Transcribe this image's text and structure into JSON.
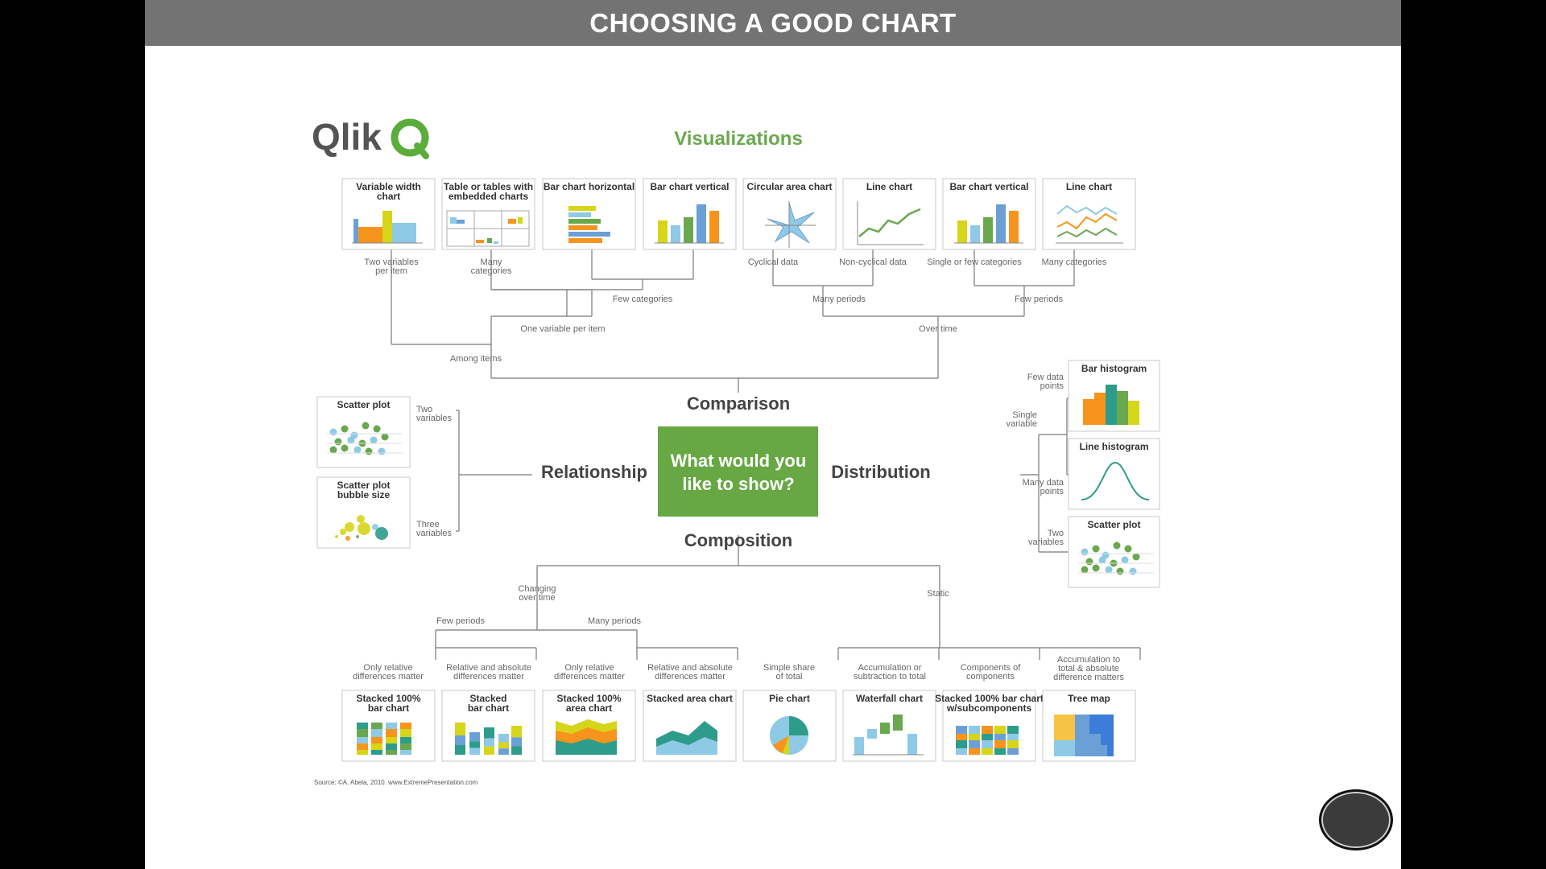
{
  "slide": {
    "title": "CHOOSING A GOOD CHART"
  },
  "logo": {
    "text": "Qlik"
  },
  "diagram": {
    "heading": "Visualizations",
    "center_question": [
      "What would you",
      "like to show?"
    ],
    "categories": {
      "comparison": "Comparison",
      "relationship": "Relationship",
      "distribution": "Distribution",
      "composition": "Composition"
    },
    "comparison": {
      "charts": [
        {
          "title": [
            "Variable width",
            "chart"
          ],
          "icon": "variable-width-chart-icon"
        },
        {
          "title": [
            "Table or tables with",
            "embedded charts"
          ],
          "icon": "table-embedded-charts-icon"
        },
        {
          "title": [
            "Bar chart horizontal"
          ],
          "icon": "bar-chart-horizontal-icon"
        },
        {
          "title": [
            "Bar chart vertical"
          ],
          "icon": "bar-chart-vertical-icon"
        },
        {
          "title": [
            "Circular area chart"
          ],
          "icon": "circular-area-chart-icon"
        },
        {
          "title": [
            "Line chart"
          ],
          "icon": "line-chart-icon"
        },
        {
          "title": [
            "Bar chart vertical"
          ],
          "icon": "bar-chart-vertical-icon"
        },
        {
          "title": [
            "Line chart"
          ],
          "icon": "multi-line-chart-icon"
        }
      ],
      "labels": {
        "two_variables": [
          "Two variables",
          "per item"
        ],
        "many_categories_1": [
          "Many",
          "categories"
        ],
        "cyclical": "Cyclical data",
        "non_cyclical": "Non-cyclical data",
        "single_few": "Single or few categories",
        "many_categories_2": "Many categories",
        "few_categories": "Few categories",
        "many_periods": "Many periods",
        "few_periods": "Few periods",
        "one_variable": "One variable per item",
        "over_time": "Over time",
        "among_items": "Among items"
      }
    },
    "relationship": {
      "charts": [
        {
          "title": [
            "Scatter plot"
          ],
          "icon": "scatter-plot-icon"
        },
        {
          "title": [
            "Scatter plot",
            "bubble size"
          ],
          "icon": "bubble-chart-icon"
        }
      ],
      "labels": {
        "two_variables": [
          "Two",
          "variables"
        ],
        "three_variables": [
          "Three",
          "variables"
        ]
      }
    },
    "distribution": {
      "charts": [
        {
          "title": [
            "Bar histogram"
          ],
          "icon": "bar-histogram-icon"
        },
        {
          "title": [
            "Line histogram"
          ],
          "icon": "line-histogram-icon"
        },
        {
          "title": [
            "Scatter plot"
          ],
          "icon": "scatter-plot-icon"
        }
      ],
      "labels": {
        "few_points": [
          "Few data",
          "points"
        ],
        "single_variable": [
          "Single",
          "variable"
        ],
        "many_points": [
          "Many data",
          "points"
        ],
        "two_variables": [
          "Two",
          "variables"
        ]
      }
    },
    "composition": {
      "charts": [
        {
          "title": [
            "Stacked 100%",
            "bar chart"
          ],
          "icon": "stacked-100-bar-chart-icon"
        },
        {
          "title": [
            "Stacked",
            "bar chart"
          ],
          "icon": "stacked-bar-chart-icon"
        },
        {
          "title": [
            "Stacked 100%",
            "area chart"
          ],
          "icon": "stacked-100-area-chart-icon"
        },
        {
          "title": [
            "Stacked area chart"
          ],
          "icon": "stacked-area-chart-icon"
        },
        {
          "title": [
            "Pie chart"
          ],
          "icon": "pie-chart-icon"
        },
        {
          "title": [
            "Waterfall chart"
          ],
          "icon": "waterfall-chart-icon"
        },
        {
          "title": [
            "Stacked 100% bar chart",
            "w/subcomponents"
          ],
          "icon": "stacked-subcomponents-icon"
        },
        {
          "title": [
            "Tree map"
          ],
          "icon": "tree-map-icon"
        }
      ],
      "labels": {
        "changing": [
          "Changing",
          "over time"
        ],
        "static": "Static",
        "few_periods": "Few periods",
        "many_periods": "Many periods",
        "only_relative_1": [
          "Only relative",
          "differences matter"
        ],
        "relative_absolute_1": [
          "Relative and absolute",
          "differences matter"
        ],
        "only_relative_2": [
          "Only relative",
          "differences matter"
        ],
        "relative_absolute_2": [
          "Relative and absolute",
          "differences matter"
        ],
        "simple_share": [
          "Simple share",
          "of total"
        ],
        "accumulation": [
          "Accumulation or",
          "subtraction to total"
        ],
        "components": [
          "Components of",
          "components"
        ],
        "accumulation_total": [
          "Accumulation to",
          "total & absolute",
          "difference matters"
        ]
      }
    },
    "source": "Source: ©A. Abela, 2010. www.ExtremePresentation.com"
  },
  "colors": {
    "green": "#6aa84f",
    "center_box": "#67a744",
    "orange": "#f7941d",
    "yellow": "#d6d51a",
    "blue": "#6b9fd6",
    "teal": "#2e9c8a",
    "lightblue": "#8ecae6",
    "header_bg": "#737373"
  }
}
